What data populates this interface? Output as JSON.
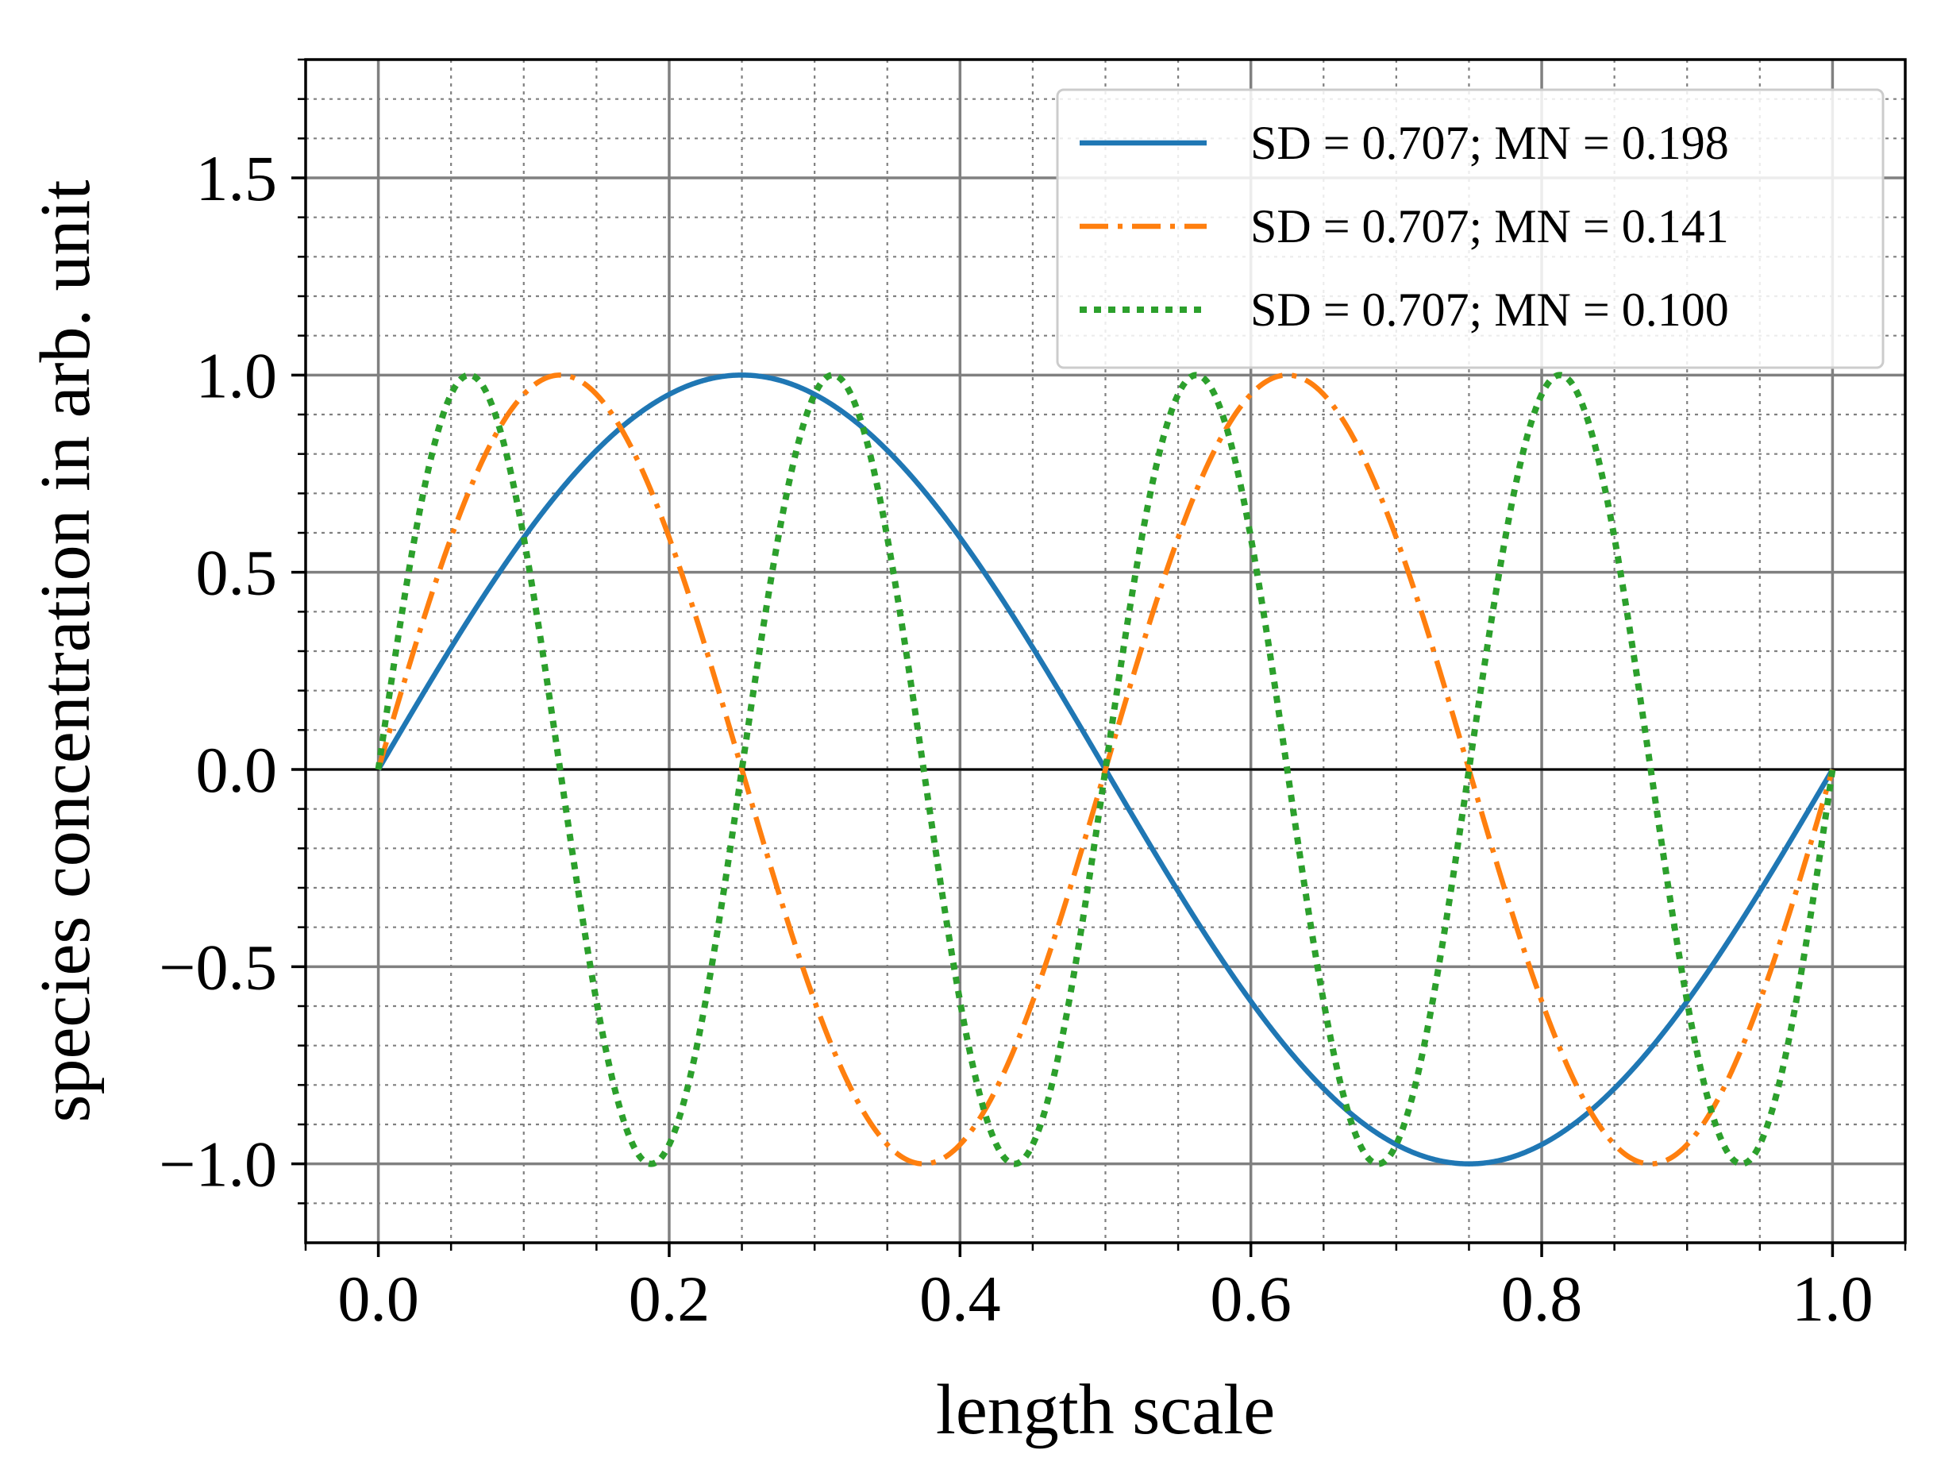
{
  "chart_data": {
    "type": "line",
    "title": "",
    "xlabel": "length scale",
    "ylabel": "species concentration in arb. unit",
    "xlim": [
      -0.05,
      1.05
    ],
    "ylim": [
      -1.2,
      1.8
    ],
    "xticks": [
      0.0,
      0.2,
      0.4,
      0.6,
      0.8,
      1.0
    ],
    "xtick_labels": [
      "0.0",
      "0.2",
      "0.4",
      "0.6",
      "0.8",
      "1.0"
    ],
    "yticks": [
      -1.0,
      -0.5,
      0.0,
      0.5,
      1.0,
      1.5
    ],
    "ytick_labels": [
      "−1.0",
      "−0.5",
      "0.0",
      "0.5",
      "1.0",
      "1.5"
    ],
    "x_minor_step": 0.05,
    "y_minor_step": 0.1,
    "grid": true,
    "zero_line": true,
    "legend_position": "top-right",
    "series": [
      {
        "name": "SD = 0.707; MN = 0.198",
        "function": "sin(2*pi*x)",
        "cycles": 1,
        "x_range": [
          0,
          1
        ],
        "color": "#1f77b4",
        "linestyle": "solid"
      },
      {
        "name": "SD = 0.707; MN = 0.141",
        "function": "sin(4*pi*x)",
        "cycles": 2,
        "x_range": [
          0,
          1
        ],
        "color": "#ff7f0e",
        "linestyle": "dashdot"
      },
      {
        "name": "SD = 0.707; MN = 0.100",
        "function": "sin(8*pi*x)",
        "cycles": 4,
        "x_range": [
          0,
          1
        ],
        "color": "#2ca02c",
        "linestyle": "dotted"
      }
    ]
  }
}
